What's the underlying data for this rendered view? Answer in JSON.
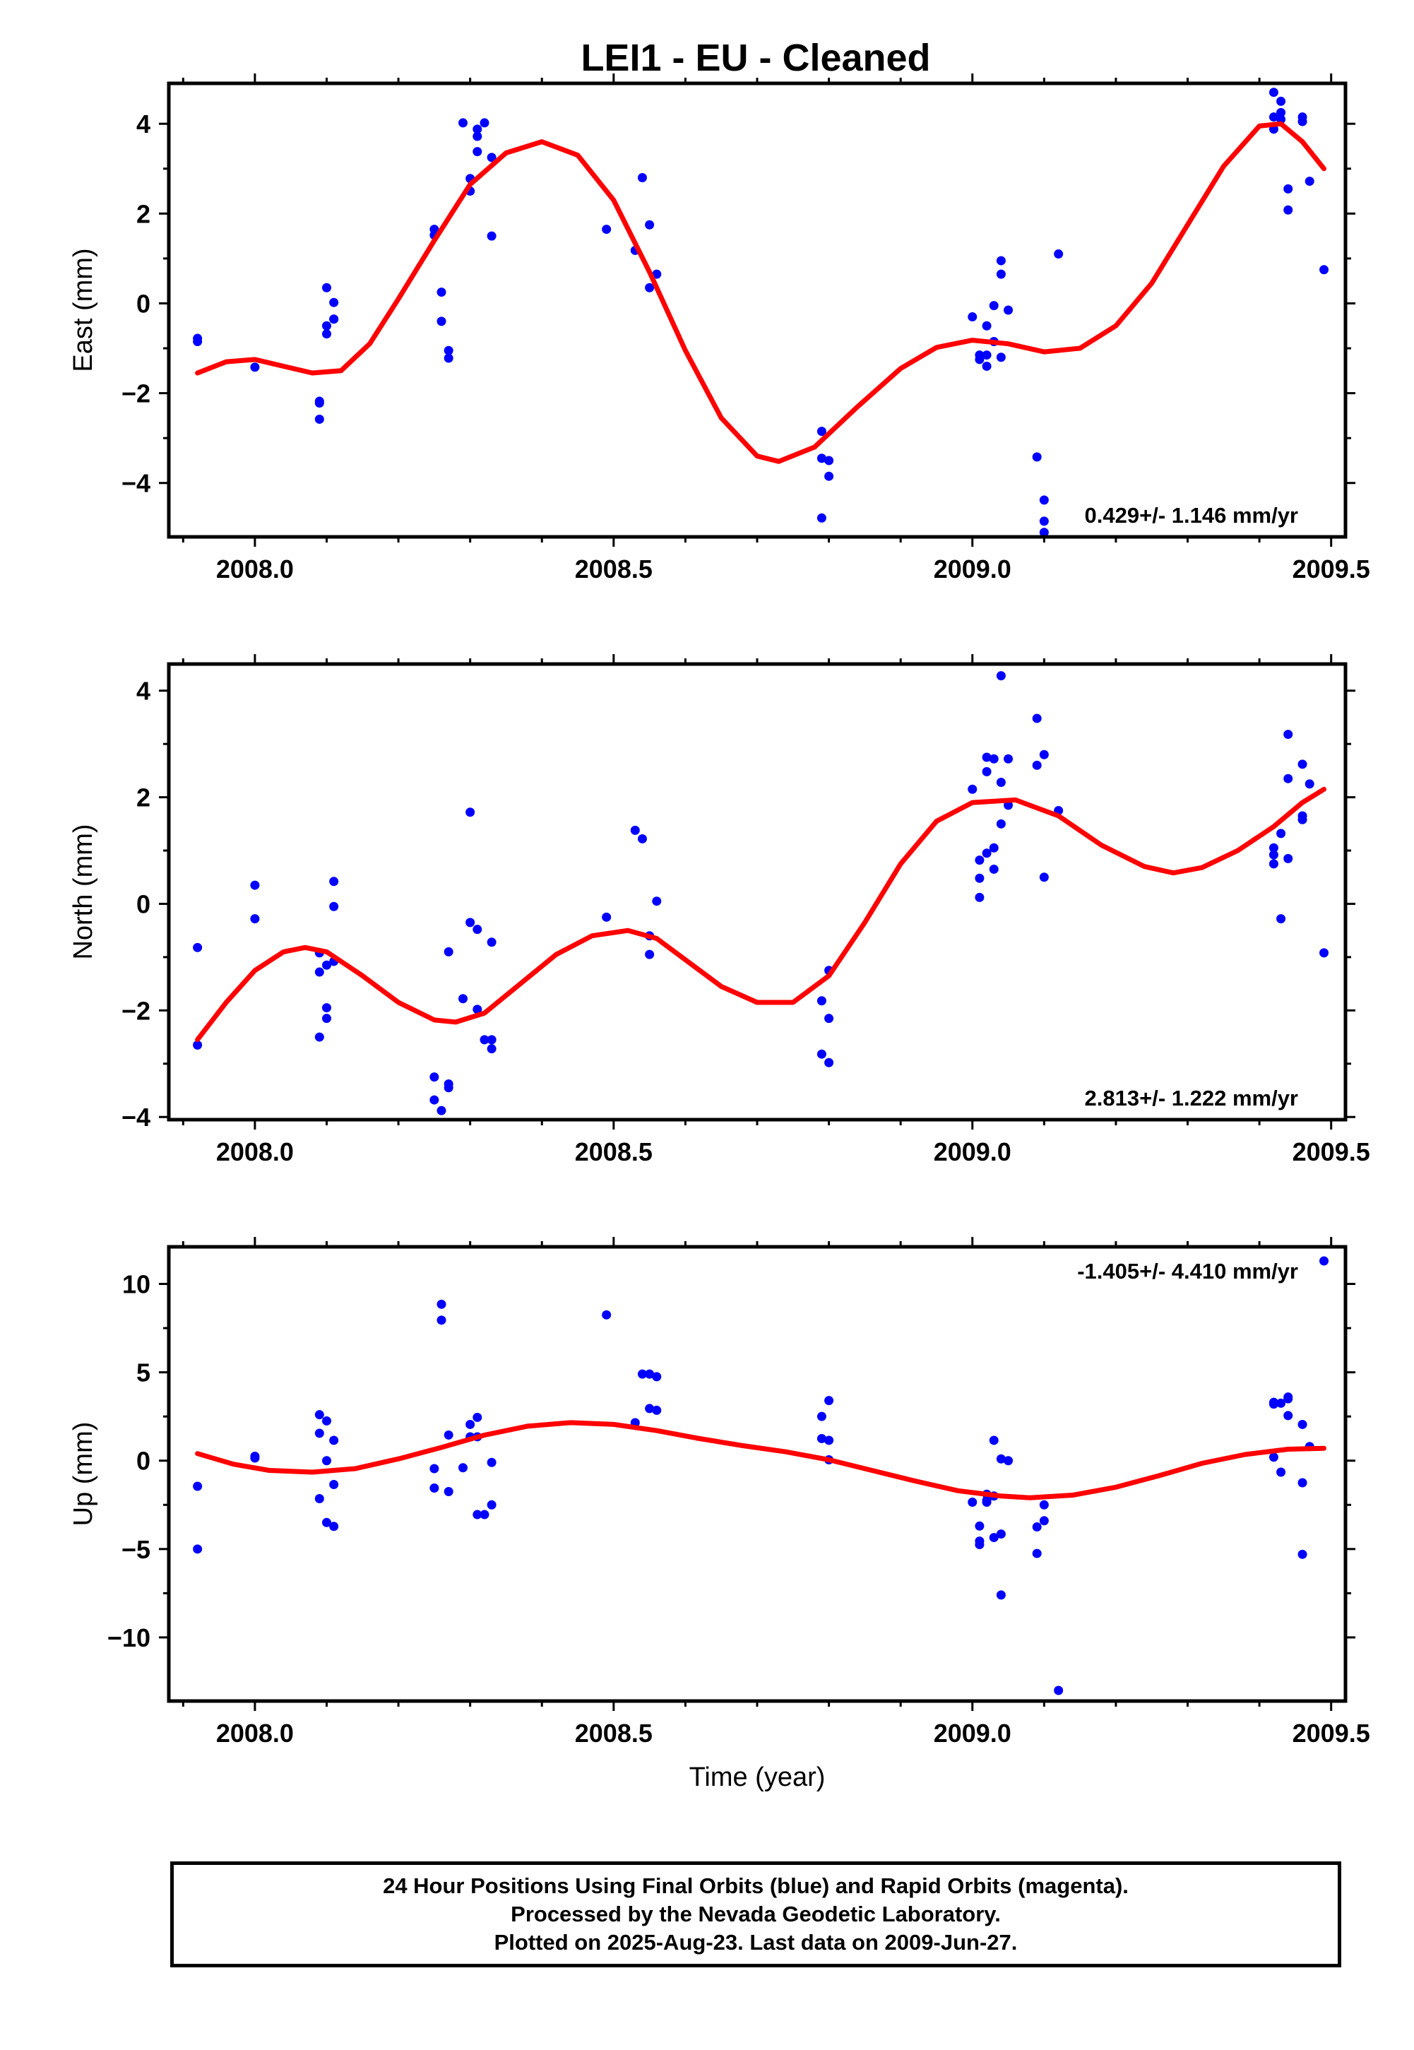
{
  "chart_data": [
    {
      "type": "scatter",
      "panel": "east",
      "title": "LEI1  - EU - Cleaned",
      "ylabel": "East (mm)",
      "xlabel": "",
      "xlim": [
        2007.88,
        2009.52
      ],
      "ylim": [
        -5.2,
        4.9
      ],
      "xticks": [
        2008.0,
        2008.5,
        2009.0,
        2009.5
      ],
      "xtick_labels": [
        "2008.0",
        "2008.5",
        "2009.0",
        "2009.5"
      ],
      "yticks": [
        -4,
        -2,
        0,
        2,
        4
      ],
      "ytick_labels": [
        "−4",
        "−2",
        "0",
        "2",
        "4"
      ],
      "rate_label": "0.429+/- 1.146 mm/yr",
      "points": [
        [
          2007.92,
          -0.78
        ],
        [
          2007.92,
          -0.85
        ],
        [
          2008.0,
          -1.42
        ],
        [
          2008.09,
          -2.22
        ],
        [
          2008.09,
          -2.58
        ],
        [
          2008.09,
          -2.18
        ],
        [
          2008.1,
          0.35
        ],
        [
          2008.1,
          -0.68
        ],
        [
          2008.1,
          -0.5
        ],
        [
          2008.11,
          0.02
        ],
        [
          2008.11,
          -0.35
        ],
        [
          2008.11,
          -0.35
        ],
        [
          2008.25,
          1.52
        ],
        [
          2008.25,
          1.65
        ],
        [
          2008.26,
          0.25
        ],
        [
          2008.26,
          -0.4
        ],
        [
          2008.27,
          -1.05
        ],
        [
          2008.27,
          -1.22
        ],
        [
          2008.29,
          4.02
        ],
        [
          2008.3,
          2.78
        ],
        [
          2008.3,
          2.5
        ],
        [
          2008.31,
          3.72
        ],
        [
          2008.31,
          3.88
        ],
        [
          2008.31,
          3.38
        ],
        [
          2008.32,
          4.02
        ],
        [
          2008.33,
          3.25
        ],
        [
          2008.33,
          1.5
        ],
        [
          2008.49,
          1.65
        ],
        [
          2008.53,
          1.18
        ],
        [
          2008.54,
          2.8
        ],
        [
          2008.55,
          0.35
        ],
        [
          2008.55,
          1.75
        ],
        [
          2008.56,
          0.65
        ],
        [
          2008.79,
          -2.85
        ],
        [
          2008.79,
          -3.45
        ],
        [
          2008.79,
          -4.78
        ],
        [
          2008.8,
          -3.5
        ],
        [
          2008.8,
          -3.85
        ],
        [
          2009.0,
          -0.3
        ],
        [
          2009.01,
          -1.15
        ],
        [
          2009.01,
          -1.25
        ],
        [
          2009.02,
          -1.4
        ],
        [
          2009.02,
          -0.5
        ],
        [
          2009.02,
          -1.15
        ],
        [
          2009.03,
          -0.05
        ],
        [
          2009.03,
          -0.85
        ],
        [
          2009.04,
          0.65
        ],
        [
          2009.04,
          -1.2
        ],
        [
          2009.04,
          0.95
        ],
        [
          2009.05,
          -0.15
        ],
        [
          2009.09,
          -3.42
        ],
        [
          2009.1,
          -4.38
        ],
        [
          2009.1,
          -4.85
        ],
        [
          2009.1,
          -5.1
        ],
        [
          2009.12,
          1.1
        ],
        [
          2009.42,
          3.88
        ],
        [
          2009.42,
          4.7
        ],
        [
          2009.42,
          4.15
        ],
        [
          2009.43,
          4.5
        ],
        [
          2009.43,
          4.1
        ],
        [
          2009.43,
          4.25
        ],
        [
          2009.44,
          2.55
        ],
        [
          2009.44,
          2.08
        ],
        [
          2009.46,
          4.05
        ],
        [
          2009.46,
          4.15
        ],
        [
          2009.47,
          2.72
        ],
        [
          2009.49,
          0.75
        ]
      ],
      "curve": [
        [
          2007.92,
          -1.55
        ],
        [
          2007.96,
          -1.3
        ],
        [
          2008.0,
          -1.25
        ],
        [
          2008.04,
          -1.4
        ],
        [
          2008.08,
          -1.55
        ],
        [
          2008.12,
          -1.5
        ],
        [
          2008.16,
          -0.9
        ],
        [
          2008.2,
          0.1
        ],
        [
          2008.25,
          1.4
        ],
        [
          2008.3,
          2.65
        ],
        [
          2008.35,
          3.35
        ],
        [
          2008.4,
          3.6
        ],
        [
          2008.45,
          3.3
        ],
        [
          2008.5,
          2.3
        ],
        [
          2008.55,
          0.7
        ],
        [
          2008.6,
          -1.05
        ],
        [
          2008.65,
          -2.55
        ],
        [
          2008.7,
          -3.4
        ],
        [
          2008.73,
          -3.52
        ],
        [
          2008.78,
          -3.2
        ],
        [
          2008.84,
          -2.3
        ],
        [
          2008.9,
          -1.45
        ],
        [
          2008.95,
          -0.98
        ],
        [
          2009.0,
          -0.82
        ],
        [
          2009.05,
          -0.9
        ],
        [
          2009.1,
          -1.08
        ],
        [
          2009.15,
          -1.0
        ],
        [
          2009.2,
          -0.5
        ],
        [
          2009.25,
          0.45
        ],
        [
          2009.3,
          1.75
        ],
        [
          2009.35,
          3.05
        ],
        [
          2009.4,
          3.95
        ],
        [
          2009.43,
          4.0
        ],
        [
          2009.46,
          3.6
        ],
        [
          2009.49,
          3.0
        ]
      ]
    },
    {
      "type": "scatter",
      "panel": "north",
      "ylabel": "North (mm)",
      "xlabel": "",
      "xlim": [
        2007.88,
        2009.52
      ],
      "ylim": [
        -4.05,
        4.5
      ],
      "xticks": [
        2008.0,
        2008.5,
        2009.0,
        2009.5
      ],
      "xtick_labels": [
        "2008.0",
        "2008.5",
        "2009.0",
        "2009.5"
      ],
      "yticks": [
        -4,
        -2,
        0,
        2,
        4
      ],
      "ytick_labels": [
        "−4",
        "−2",
        "0",
        "2",
        "4"
      ],
      "rate_label": "2.813+/- 1.222 mm/yr",
      "points": [
        [
          2007.92,
          -0.82
        ],
        [
          2007.92,
          -2.65
        ],
        [
          2008.0,
          0.35
        ],
        [
          2008.0,
          -0.28
        ],
        [
          2008.09,
          -1.28
        ],
        [
          2008.09,
          -0.92
        ],
        [
          2008.09,
          -2.5
        ],
        [
          2008.1,
          -1.95
        ],
        [
          2008.1,
          -2.15
        ],
        [
          2008.1,
          -1.15
        ],
        [
          2008.11,
          -1.08
        ],
        [
          2008.11,
          0.42
        ],
        [
          2008.11,
          -0.05
        ],
        [
          2008.25,
          -3.25
        ],
        [
          2008.25,
          -3.68
        ],
        [
          2008.26,
          -3.88
        ],
        [
          2008.27,
          -3.45
        ],
        [
          2008.27,
          -3.38
        ],
        [
          2008.27,
          -0.9
        ],
        [
          2008.29,
          -1.78
        ],
        [
          2008.3,
          1.72
        ],
        [
          2008.3,
          -0.35
        ],
        [
          2008.31,
          -0.48
        ],
        [
          2008.31,
          -1.98
        ],
        [
          2008.32,
          -2.55
        ],
        [
          2008.33,
          -2.72
        ],
        [
          2008.33,
          -2.55
        ],
        [
          2008.33,
          -0.72
        ],
        [
          2008.49,
          -0.25
        ],
        [
          2008.53,
          1.38
        ],
        [
          2008.54,
          1.22
        ],
        [
          2008.55,
          -0.95
        ],
        [
          2008.55,
          -0.6
        ],
        [
          2008.56,
          0.05
        ],
        [
          2008.79,
          -1.82
        ],
        [
          2008.79,
          -2.82
        ],
        [
          2008.8,
          -2.98
        ],
        [
          2008.8,
          -2.15
        ],
        [
          2008.8,
          -1.25
        ],
        [
          2009.0,
          2.15
        ],
        [
          2009.01,
          0.12
        ],
        [
          2009.01,
          0.48
        ],
        [
          2009.01,
          0.82
        ],
        [
          2009.02,
          2.48
        ],
        [
          2009.02,
          0.95
        ],
        [
          2009.02,
          2.75
        ],
        [
          2009.03,
          1.05
        ],
        [
          2009.03,
          0.65
        ],
        [
          2009.03,
          2.72
        ],
        [
          2009.04,
          4.28
        ],
        [
          2009.04,
          1.5
        ],
        [
          2009.04,
          2.28
        ],
        [
          2009.05,
          1.85
        ],
        [
          2009.05,
          2.72
        ],
        [
          2009.09,
          2.6
        ],
        [
          2009.09,
          3.48
        ],
        [
          2009.1,
          2.8
        ],
        [
          2009.1,
          0.5
        ],
        [
          2009.12,
          1.75
        ],
        [
          2009.42,
          0.92
        ],
        [
          2009.42,
          1.05
        ],
        [
          2009.42,
          0.75
        ],
        [
          2009.43,
          1.32
        ],
        [
          2009.43,
          -0.28
        ],
        [
          2009.44,
          0.85
        ],
        [
          2009.44,
          3.18
        ],
        [
          2009.44,
          2.35
        ],
        [
          2009.46,
          1.65
        ],
        [
          2009.46,
          1.58
        ],
        [
          2009.46,
          2.62
        ],
        [
          2009.47,
          2.25
        ],
        [
          2009.49,
          -0.92
        ]
      ],
      "curve": [
        [
          2007.92,
          -2.55
        ],
        [
          2007.96,
          -1.85
        ],
        [
          2008.0,
          -1.25
        ],
        [
          2008.04,
          -0.9
        ],
        [
          2008.07,
          -0.82
        ],
        [
          2008.1,
          -0.9
        ],
        [
          2008.15,
          -1.35
        ],
        [
          2008.2,
          -1.85
        ],
        [
          2008.25,
          -2.18
        ],
        [
          2008.28,
          -2.22
        ],
        [
          2008.32,
          -2.05
        ],
        [
          2008.37,
          -1.5
        ],
        [
          2008.42,
          -0.95
        ],
        [
          2008.47,
          -0.6
        ],
        [
          2008.52,
          -0.5
        ],
        [
          2008.56,
          -0.65
        ],
        [
          2008.6,
          -1.05
        ],
        [
          2008.65,
          -1.55
        ],
        [
          2008.7,
          -1.85
        ],
        [
          2008.75,
          -1.85
        ],
        [
          2008.8,
          -1.35
        ],
        [
          2008.85,
          -0.35
        ],
        [
          2008.9,
          0.75
        ],
        [
          2008.95,
          1.55
        ],
        [
          2009.0,
          1.9
        ],
        [
          2009.06,
          1.95
        ],
        [
          2009.12,
          1.65
        ],
        [
          2009.18,
          1.1
        ],
        [
          2009.24,
          0.7
        ],
        [
          2009.28,
          0.58
        ],
        [
          2009.32,
          0.68
        ],
        [
          2009.37,
          1.0
        ],
        [
          2009.42,
          1.45
        ],
        [
          2009.46,
          1.9
        ],
        [
          2009.49,
          2.15
        ]
      ]
    },
    {
      "type": "scatter",
      "panel": "up",
      "ylabel": "Up (mm)",
      "xlabel": "Time (year)",
      "xlim": [
        2007.88,
        2009.52
      ],
      "ylim": [
        -13.6,
        12.1
      ],
      "xticks": [
        2008.0,
        2008.5,
        2009.0,
        2009.5
      ],
      "xtick_labels": [
        "2008.0",
        "2008.5",
        "2009.0",
        "2009.5"
      ],
      "yticks": [
        -10,
        -5,
        0,
        5,
        10
      ],
      "ytick_labels": [
        "−10",
        "−5",
        "0",
        "5",
        "10"
      ],
      "rate_label": "-1.405+/- 4.410 mm/yr",
      "points": [
        [
          2007.92,
          -1.45
        ],
        [
          2007.92,
          -5.0
        ],
        [
          2008.0,
          0.25
        ],
        [
          2008.0,
          0.15
        ],
        [
          2008.09,
          -2.15
        ],
        [
          2008.09,
          2.6
        ],
        [
          2008.09,
          1.55
        ],
        [
          2008.1,
          0.0
        ],
        [
          2008.1,
          2.25
        ],
        [
          2008.1,
          -3.5
        ],
        [
          2008.11,
          -1.35
        ],
        [
          2008.11,
          1.15
        ],
        [
          2008.11,
          -3.72
        ],
        [
          2008.25,
          -1.55
        ],
        [
          2008.25,
          -0.45
        ],
        [
          2008.26,
          7.95
        ],
        [
          2008.26,
          8.85
        ],
        [
          2008.27,
          1.45
        ],
        [
          2008.27,
          -1.75
        ],
        [
          2008.29,
          -0.4
        ],
        [
          2008.3,
          1.35
        ],
        [
          2008.3,
          2.05
        ],
        [
          2008.31,
          2.45
        ],
        [
          2008.31,
          1.35
        ],
        [
          2008.31,
          -3.05
        ],
        [
          2008.32,
          -3.05
        ],
        [
          2008.33,
          -0.1
        ],
        [
          2008.33,
          -2.5
        ],
        [
          2008.49,
          8.25
        ],
        [
          2008.53,
          2.15
        ],
        [
          2008.54,
          4.9
        ],
        [
          2008.55,
          2.95
        ],
        [
          2008.55,
          4.9
        ],
        [
          2008.56,
          4.75
        ],
        [
          2008.56,
          2.85
        ],
        [
          2008.79,
          2.5
        ],
        [
          2008.79,
          1.25
        ],
        [
          2008.8,
          3.4
        ],
        [
          2008.8,
          1.15
        ],
        [
          2008.8,
          0.05
        ],
        [
          2009.0,
          -2.35
        ],
        [
          2009.01,
          -4.55
        ],
        [
          2009.01,
          -3.7
        ],
        [
          2009.01,
          -4.75
        ],
        [
          2009.02,
          -2.35
        ],
        [
          2009.02,
          -2.25
        ],
        [
          2009.02,
          -1.9
        ],
        [
          2009.03,
          1.15
        ],
        [
          2009.03,
          -4.35
        ],
        [
          2009.03,
          -2.0
        ],
        [
          2009.04,
          -4.15
        ],
        [
          2009.04,
          -7.6
        ],
        [
          2009.04,
          0.1
        ],
        [
          2009.05,
          0.0
        ],
        [
          2009.09,
          -3.75
        ],
        [
          2009.09,
          -5.25
        ],
        [
          2009.1,
          -3.4
        ],
        [
          2009.1,
          -2.5
        ],
        [
          2009.12,
          -13.0
        ],
        [
          2009.42,
          3.2
        ],
        [
          2009.42,
          0.2
        ],
        [
          2009.42,
          3.3
        ],
        [
          2009.43,
          3.25
        ],
        [
          2009.43,
          -0.65
        ],
        [
          2009.44,
          3.5
        ],
        [
          2009.44,
          2.55
        ],
        [
          2009.44,
          3.6
        ],
        [
          2009.46,
          -1.25
        ],
        [
          2009.46,
          -5.3
        ],
        [
          2009.46,
          2.05
        ],
        [
          2009.47,
          0.8
        ],
        [
          2009.49,
          11.3
        ]
      ],
      "curve": [
        [
          2007.92,
          0.4
        ],
        [
          2007.97,
          -0.2
        ],
        [
          2008.02,
          -0.55
        ],
        [
          2008.08,
          -0.65
        ],
        [
          2008.14,
          -0.45
        ],
        [
          2008.2,
          0.1
        ],
        [
          2008.26,
          0.75
        ],
        [
          2008.32,
          1.45
        ],
        [
          2008.38,
          1.95
        ],
        [
          2008.44,
          2.15
        ],
        [
          2008.5,
          2.05
        ],
        [
          2008.56,
          1.7
        ],
        [
          2008.62,
          1.25
        ],
        [
          2008.68,
          0.85
        ],
        [
          2008.74,
          0.5
        ],
        [
          2008.8,
          0.05
        ],
        [
          2008.86,
          -0.55
        ],
        [
          2008.92,
          -1.15
        ],
        [
          2008.98,
          -1.7
        ],
        [
          2009.04,
          -2.0
        ],
        [
          2009.08,
          -2.1
        ],
        [
          2009.14,
          -1.95
        ],
        [
          2009.2,
          -1.5
        ],
        [
          2009.26,
          -0.85
        ],
        [
          2009.32,
          -0.15
        ],
        [
          2009.38,
          0.35
        ],
        [
          2009.44,
          0.65
        ],
        [
          2009.49,
          0.7
        ]
      ]
    }
  ],
  "colors": {
    "points": "#0000ff",
    "curve": "#ff0000",
    "axes": "#000000"
  },
  "caption": {
    "line1": "24 Hour Positions Using Final Orbits (blue) and Rapid Orbits (magenta).",
    "line2": "Processed by the Nevada Geodetic Laboratory.",
    "line3": "Plotted on 2025-Aug-23. Last data on 2009-Jun-27."
  }
}
